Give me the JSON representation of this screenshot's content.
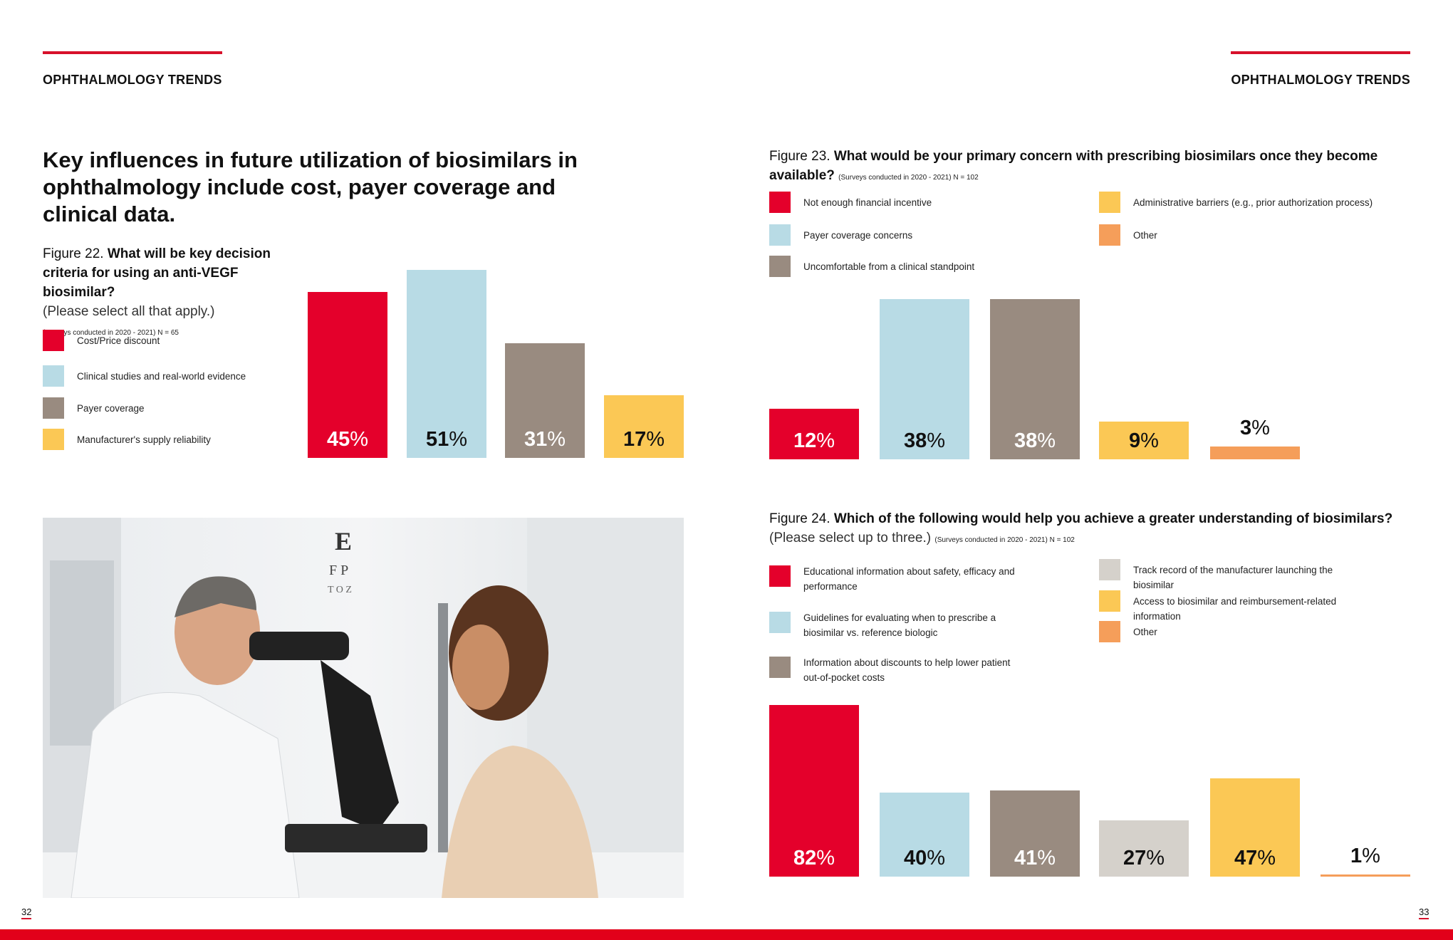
{
  "header": {
    "left": "OPHTHALMOLOGY TRENDS",
    "right": "OPHTHALMOLOGY TRENDS"
  },
  "headline": "Key influences in future utilization of biosimilars in ophthalmology include cost, payer coverage and clinical data.",
  "page_numbers": {
    "left": "32",
    "right": "33"
  },
  "colors": {
    "red": "#e4002b",
    "blue": "#b8dbe5",
    "gray": "#998b80",
    "yellow": "#fbc855",
    "orange": "#f59e5a",
    "lightgray": "#d5d1cb",
    "accent": "#d7112b"
  },
  "chart_data": [
    {
      "type": "bar",
      "figure_label": "Figure 22.",
      "title": "What will be key decision criteria for using an anti-VEGF biosimilar?",
      "instruction": "(Please select all that apply.)",
      "note": "(Surveys conducted in 2020 - 2021) N = 65",
      "categories": [
        "Cost/Price discount",
        "Clinical studies and real-world evidence",
        "Payer coverage",
        "Manufacturer's supply reliability"
      ],
      "values": [
        45,
        51,
        31,
        17
      ],
      "colors": [
        "#e4002b",
        "#b8dbe5",
        "#998b80",
        "#fbc855"
      ],
      "unit": "%"
    },
    {
      "type": "bar",
      "figure_label": "Figure 23.",
      "title": "What would be your primary concern with prescribing biosimilars once they become available?",
      "note": "(Surveys conducted in 2020 - 2021) N = 102",
      "categories": [
        "Not enough financial incentive",
        "Payer coverage concerns",
        "Uncomfortable from a clinical standpoint",
        "Administrative barriers (e.g., prior authorization process)",
        "Other"
      ],
      "values": [
        12,
        38,
        38,
        9,
        3
      ],
      "colors": [
        "#e4002b",
        "#b8dbe5",
        "#998b80",
        "#fbc855",
        "#f59e5a"
      ],
      "unit": "%"
    },
    {
      "type": "bar",
      "figure_label": "Figure 24.",
      "title": "Which of the following would help you achieve a greater understanding of biosimilars?",
      "instruction": "(Please select up to three.)",
      "note": "(Surveys conducted in 2020 - 2021) N = 102",
      "categories": [
        "Educational information about safety, efficacy and performance",
        "Guidelines for evaluating when to prescribe a biosimilar vs. reference biologic",
        "Information about discounts to help lower patient out-of-pocket costs",
        "Track record of the manufacturer launching the biosimilar",
        "Access to biosimilar and reimbursement-related information",
        "Other"
      ],
      "values": [
        82,
        40,
        41,
        27,
        47,
        1
      ],
      "colors": [
        "#e4002b",
        "#b8dbe5",
        "#998b80",
        "#d5d1cb",
        "#fbc855",
        "#f59e5a"
      ],
      "unit": "%"
    }
  ]
}
